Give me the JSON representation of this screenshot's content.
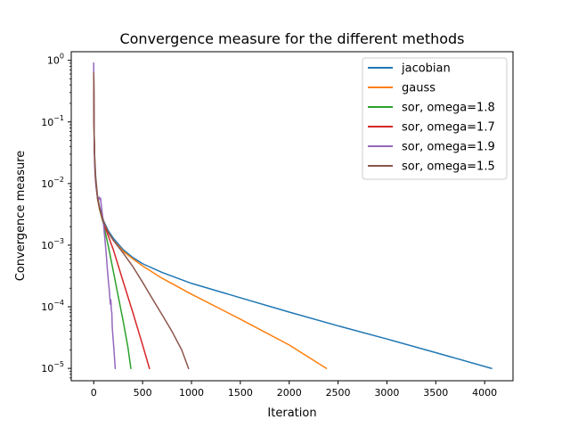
{
  "chart_data": {
    "type": "line",
    "title": "Convergence measure for the different methods",
    "xlabel": "Iteration",
    "ylabel": "Convergence measure",
    "xlim": [
      -230,
      4290
    ],
    "ylim": [
      6.3e-06,
      1.38
    ],
    "yscale": "log",
    "xticks": [
      0,
      500,
      1000,
      1500,
      2000,
      2500,
      3000,
      3500,
      4000
    ],
    "yticks": [
      {
        "value": 1,
        "base": "10",
        "exp": "0"
      },
      {
        "value": 0.1,
        "base": "10",
        "exp": "−1"
      },
      {
        "value": 0.01,
        "base": "10",
        "exp": "−2"
      },
      {
        "value": 0.001,
        "base": "10",
        "exp": "−3"
      },
      {
        "value": 0.0001,
        "base": "10",
        "exp": "−4"
      },
      {
        "value": 1e-05,
        "base": "10",
        "exp": "−5"
      }
    ],
    "grid": false,
    "legend_position": "upper-right",
    "series": [
      {
        "name": "jacobian",
        "color": "#1f77b4",
        "x": [
          0,
          2,
          5,
          10,
          20,
          40,
          60,
          100,
          150,
          200,
          300,
          400,
          500,
          700,
          1000,
          1500,
          2000,
          2500,
          3000,
          3500,
          4070
        ],
        "y": [
          0.61,
          0.17,
          0.06,
          0.027,
          0.013,
          0.006,
          0.0042,
          0.0025,
          0.0017,
          0.0013,
          0.00085,
          0.00063,
          0.0005,
          0.00036,
          0.00024,
          0.00014,
          8.2e-05,
          4.9e-05,
          3e-05,
          1.8e-05,
          1e-05
        ]
      },
      {
        "name": "gauss",
        "color": "#ff7f0e",
        "x": [
          0,
          2,
          5,
          10,
          20,
          40,
          60,
          100,
          150,
          200,
          300,
          400,
          500,
          700,
          1000,
          1500,
          2000,
          2380
        ],
        "y": [
          0.6,
          0.16,
          0.055,
          0.025,
          0.012,
          0.0058,
          0.004,
          0.0024,
          0.0016,
          0.0012,
          0.0008,
          0.0006,
          0.00046,
          0.00029,
          0.00016,
          6.3e-05,
          2.4e-05,
          1e-05
        ]
      },
      {
        "name": "sor, omega=1.8",
        "color": "#2ca02c",
        "x": [
          0,
          2,
          5,
          10,
          20,
          40,
          60,
          100,
          150,
          200,
          250,
          300,
          350,
          380
        ],
        "y": [
          0.7,
          0.15,
          0.05,
          0.022,
          0.011,
          0.0055,
          0.0038,
          0.0022,
          0.00095,
          0.00038,
          0.00015,
          6e-05,
          2.2e-05,
          1e-05
        ]
      },
      {
        "name": "sor, omega=1.7",
        "color": "#d62728",
        "x": [
          0,
          2,
          5,
          10,
          20,
          40,
          60,
          100,
          150,
          200,
          300,
          400,
          500,
          570
        ],
        "y": [
          0.65,
          0.15,
          0.05,
          0.023,
          0.011,
          0.0056,
          0.0039,
          0.0023,
          0.0014,
          0.00085,
          0.00026,
          8.1e-05,
          2.4e-05,
          1e-05
        ]
      },
      {
        "name": "sor, omega=1.9",
        "color": "#9467bd",
        "x": [
          0,
          1,
          2,
          3,
          5,
          8,
          12,
          18,
          25,
          35,
          45,
          55,
          62,
          70,
          75,
          80,
          90,
          100,
          110,
          120,
          130,
          140,
          150,
          160,
          170,
          175,
          180,
          185,
          190,
          200,
          210,
          220
        ],
        "y": [
          0.9,
          0.5,
          0.2,
          0.1,
          0.05,
          0.025,
          0.016,
          0.011,
          0.0085,
          0.0065,
          0.0056,
          0.006,
          0.0055,
          0.0058,
          0.0048,
          0.004,
          0.003,
          0.0022,
          0.0015,
          0.001,
          0.00065,
          0.0004,
          0.00026,
          0.00018,
          0.00011,
          0.00013,
          9e-05,
          8e-05,
          4.5e-05,
          2.8e-05,
          1.7e-05,
          1e-05
        ]
      },
      {
        "name": "sor, omega=1.5",
        "color": "#8c564b",
        "x": [
          0,
          2,
          5,
          10,
          20,
          40,
          60,
          100,
          150,
          200,
          300,
          400,
          500,
          600,
          700,
          800,
          900,
          970
        ],
        "y": [
          0.62,
          0.16,
          0.052,
          0.024,
          0.0115,
          0.0057,
          0.004,
          0.0024,
          0.0016,
          0.0012,
          0.00075,
          0.00045,
          0.00025,
          0.000135,
          7.4e-05,
          4e-05,
          2e-05,
          1e-05
        ]
      }
    ]
  }
}
